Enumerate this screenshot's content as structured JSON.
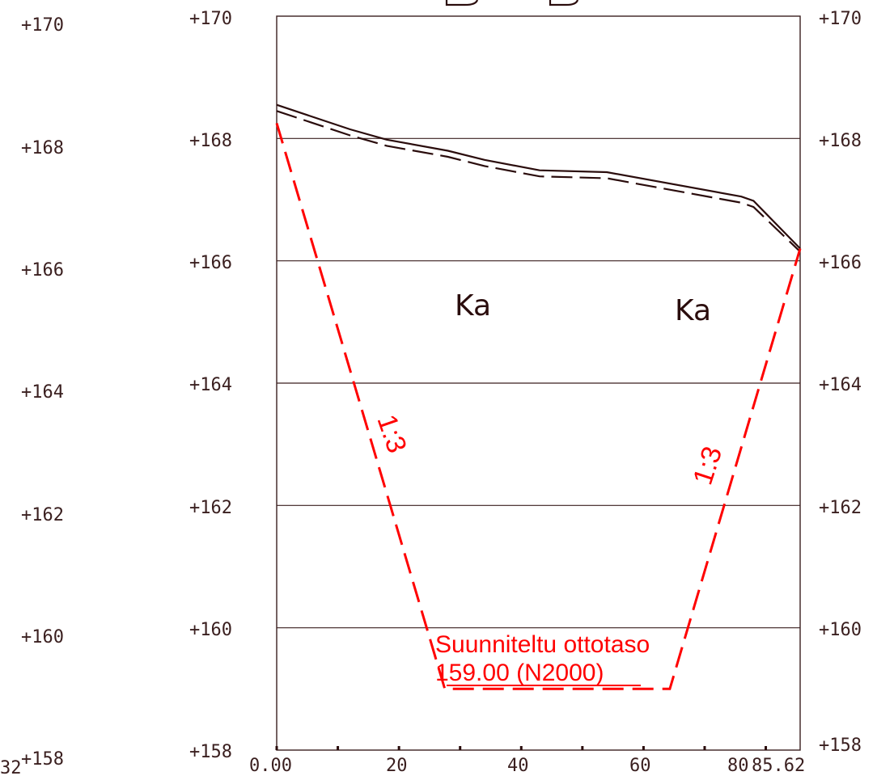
{
  "left_scale_labels": [
    "+170",
    "+168",
    "+166",
    "+164",
    "+162",
    "+160",
    "+158"
  ],
  "y_axis_left_labels": [
    "+170",
    "+168",
    "+166",
    "+164",
    "+162",
    "+160",
    "+158"
  ],
  "y_axis_right_labels": [
    "+170",
    "+168",
    "+166",
    "+164",
    "+162",
    "+160",
    "+158"
  ],
  "x_axis_labels": [
    "0.00",
    "20",
    "40",
    "60",
    "80",
    "85.62"
  ],
  "cut_off_label": "32",
  "soil_labels": [
    "Ka",
    "Ka"
  ],
  "slope_labels": [
    "1:3",
    "1:3"
  ],
  "design_level": {
    "line1": "Suunniteltu ottotaso",
    "line2": "159.00 (N2000)"
  },
  "colors": {
    "ink": "#2a0c0c",
    "design": "#ff0000"
  },
  "chart_data": {
    "type": "line",
    "x_range": [
      0,
      85.62
    ],
    "y_range": [
      158,
      170
    ],
    "grid": true,
    "series": [
      {
        "x": [
          0,
          12,
          18,
          28,
          34,
          43,
          54,
          76,
          78,
          85.62
        ],
        "y": [
          168.55,
          168.15,
          167.98,
          167.8,
          167.65,
          167.48,
          167.45,
          167.05,
          166.98,
          166.2
        ]
      },
      {
        "x": [
          0,
          12,
          18,
          28,
          34,
          43,
          54,
          76,
          78,
          85.62
        ],
        "y": [
          168.45,
          168.05,
          167.88,
          167.7,
          167.55,
          167.38,
          167.35,
          166.95,
          166.88,
          166.15
        ]
      },
      {
        "x": [
          0,
          27.5,
          64.3,
          85.62
        ],
        "y": [
          168.25,
          159.0,
          159.0,
          166.2
        ]
      }
    ]
  }
}
